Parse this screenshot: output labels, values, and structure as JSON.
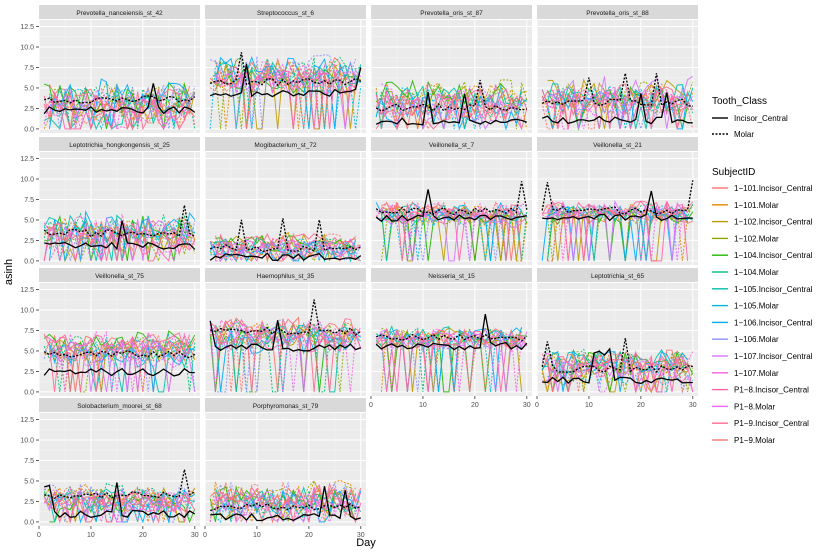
{
  "chart_data": {
    "type": "line",
    "layout": "faceted small multiples, 4 columns",
    "xlabel": "Day",
    "ylabel": "asinh",
    "xlim": [
      0,
      31
    ],
    "ylim": [
      -0.5,
      13.3
    ],
    "x_ticks": [
      0,
      10,
      20,
      30
    ],
    "x_tick_labels": [
      "0",
      "10",
      "20",
      "30"
    ],
    "y_ticks": [
      0,
      2.5,
      5,
      7.5,
      10,
      12.5
    ],
    "y_tick_labels": [
      "0.0",
      "2.5",
      "5.0",
      "7.5",
      "10.0",
      "12.5"
    ],
    "grid": true,
    "legends": {
      "linetype": {
        "title": "Tooth_Class",
        "entries": [
          {
            "label": "Incisor_Central",
            "dash": "solid"
          },
          {
            "label": "Molar",
            "dash": "dotted"
          }
        ]
      },
      "color": {
        "title": "SubjectID",
        "entries": [
          {
            "label": "1−101.Incisor_Central",
            "color": "#F8766D"
          },
          {
            "label": "1−101.Molar",
            "color": "#E18A00"
          },
          {
            "label": "1−102.Incisor_Central",
            "color": "#BE9C00"
          },
          {
            "label": "1−102.Molar",
            "color": "#8CAB00"
          },
          {
            "label": "1−104.Incisor_Central",
            "color": "#24B700"
          },
          {
            "label": "1−104.Molar",
            "color": "#00BE70"
          },
          {
            "label": "1−105.Incisor_Central",
            "color": "#00C1AB"
          },
          {
            "label": "1−105.Molar",
            "color": "#00BBDA"
          },
          {
            "label": "1−106.Incisor_Central",
            "color": "#00ACFC"
          },
          {
            "label": "1−106.Molar",
            "color": "#8B93FF"
          },
          {
            "label": "1−107.Incisor_Central",
            "color": "#D575FE"
          },
          {
            "label": "1−107.Molar",
            "color": "#F962DD"
          },
          {
            "label": "P1−8.Incisor_Central",
            "color": "#FF65AC"
          },
          {
            "label": "P1−8.Molar",
            "color": "#E76BF3"
          },
          {
            "label": "P1−9.Incisor_Central",
            "color": "#FF6C91"
          },
          {
            "label": "P1−9.Molar",
            "color": "#F8766D"
          }
        ]
      }
    },
    "panels": [
      {
        "title": "Prevotella_nanceiensis_st_42",
        "level": 3.2,
        "spread": 2.4,
        "mean_solid": 2.3,
        "mean_dotted": 3.6
      },
      {
        "title": "Streptococcus_st_6",
        "level": 6.6,
        "spread": 2.0,
        "mean_solid": 4.4,
        "mean_dotted": 5.8
      },
      {
        "title": "Prevotella_oris_st_87",
        "level": 3.4,
        "spread": 2.2,
        "mean_solid": 0.9,
        "mean_dotted": 2.6
      },
      {
        "title": "Prevotella_oris_st_88",
        "level": 4.0,
        "spread": 2.0,
        "mean_solid": 1.1,
        "mean_dotted": 3.2
      },
      {
        "title": "Leptotrichia_hongkongensis_st_25",
        "level": 3.4,
        "spread": 2.2,
        "mean_solid": 1.8,
        "mean_dotted": 3.4
      },
      {
        "title": "Mogibacterium_st_72",
        "level": 1.8,
        "spread": 1.3,
        "mean_solid": 0.5,
        "mean_dotted": 1.6
      },
      {
        "title": "Veillonella_st_7",
        "level": 5.6,
        "spread": 1.4,
        "mean_solid": 5.3,
        "mean_dotted": 6.1
      },
      {
        "title": "Veillonella_st_21",
        "level": 5.8,
        "spread": 1.2,
        "mean_solid": 5.3,
        "mean_dotted": 6.2
      },
      {
        "title": "Veillonella_st_75",
        "level": 5.2,
        "spread": 1.8,
        "mean_solid": 2.4,
        "mean_dotted": 4.6
      },
      {
        "title": "Haemophilus_st_35",
        "level": 7.0,
        "spread": 1.8,
        "mean_solid": 5.4,
        "mean_dotted": 7.4
      },
      {
        "title": "Neisseria_st_15",
        "level": 6.4,
        "spread": 1.4,
        "mean_solid": 5.6,
        "mean_dotted": 6.6
      },
      {
        "title": "Leptotrichia_st_65",
        "level": 3.0,
        "spread": 1.8,
        "mean_solid": 1.4,
        "mean_dotted": 2.8
      },
      {
        "title": "Solobacterium_moorei_st_68",
        "level": 3.0,
        "spread": 1.6,
        "mean_solid": 1.0,
        "mean_dotted": 3.3
      },
      {
        "title": "Porphyromonas_st_79",
        "level": 2.8,
        "spread": 2.0,
        "mean_solid": 0.6,
        "mean_dotted": 1.8
      }
    ]
  }
}
